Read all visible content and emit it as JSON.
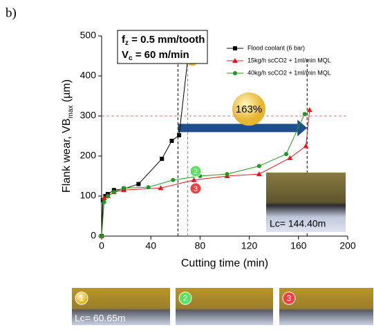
{
  "panel_label": "b)",
  "chart_data": {
    "type": "line",
    "condition": [
      {
        "symbol": "f",
        "sub": "z",
        "text": " = 0.5 mm/tooth"
      },
      {
        "symbol": "V",
        "sub": "c",
        "text": " = 60 m/min"
      }
    ],
    "xlabel": "Cutting time (min)",
    "ylabel": {
      "text": "Flank wear, VB",
      "sub": "max",
      "unit": " (µm)"
    },
    "xlim": [
      0,
      200
    ],
    "xticks": [
      0,
      40,
      80,
      120,
      160,
      200
    ],
    "ylim": [
      0,
      500
    ],
    "yticks": [
      0,
      100,
      200,
      300,
      400,
      500
    ],
    "series": [
      {
        "name": "Flood coolant (6 bar)",
        "color": "#000000",
        "marker": "square",
        "x": [
          0,
          1,
          3,
          5,
          10,
          18,
          30,
          49,
          57,
          63,
          70
        ],
        "values": [
          0,
          90,
          100,
          105,
          115,
          118,
          130,
          193,
          238,
          252,
          443
        ]
      },
      {
        "name": "15kg/h scCO2 + 1ml/min MQL",
        "color": "#e8161b",
        "marker": "triangle",
        "x": [
          0,
          2,
          5,
          10,
          18,
          48,
          75,
          102,
          128,
          153,
          166,
          169
        ],
        "values": [
          0,
          95,
          100,
          110,
          115,
          120,
          140,
          150,
          155,
          195,
          225,
          315
        ]
      },
      {
        "name": "40kg/h scCO2 + 1ml/min MQL",
        "color": "#1e9a1e",
        "marker": "circle",
        "x": [
          0,
          2,
          5,
          10,
          18,
          38,
          58,
          80,
          102,
          128,
          150,
          165
        ],
        "values": [
          0,
          85,
          100,
          110,
          120,
          122,
          140,
          150,
          155,
          175,
          205,
          305
        ]
      }
    ],
    "reference_y": 300,
    "reference_x": [
      62,
      70,
      167
    ],
    "increase_label": "163%",
    "annotations": [
      "1",
      "2",
      "3"
    ],
    "inset_label": "Lc= 144.40m",
    "photo_label": "Lc= 60.65m"
  }
}
